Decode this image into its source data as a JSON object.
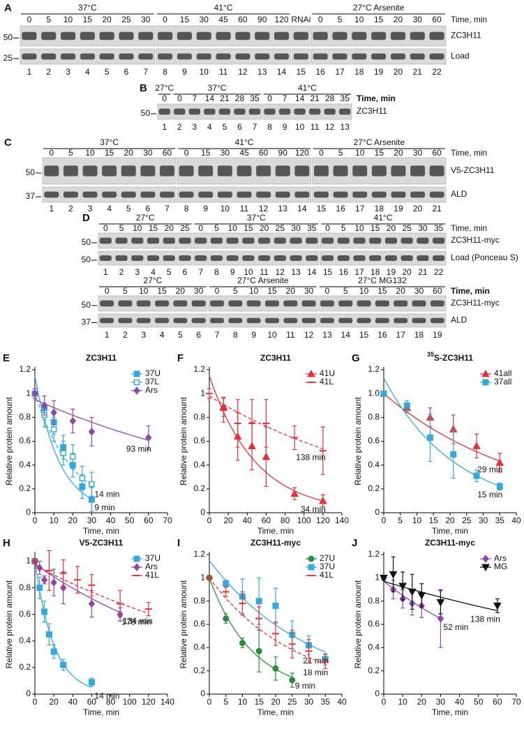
{
  "blots": [
    {
      "label": "A",
      "time_label": "Time, min",
      "groups": [
        {
          "name": "37°C",
          "times": [
            0,
            5,
            10,
            15,
            20,
            25,
            30
          ]
        },
        {
          "name": "41°C",
          "times": [
            0,
            15,
            30,
            45,
            60,
            90,
            120
          ]
        },
        {
          "times": [
            "RNAi"
          ]
        },
        {
          "name": "27°C Arsenite",
          "times": [
            0,
            5,
            10,
            15,
            20,
            30,
            60
          ]
        }
      ],
      "rows": [
        {
          "marker": "50",
          "name": "ZC3H11"
        },
        {
          "marker": "25",
          "name": "Load"
        }
      ],
      "lanes": [
        1,
        2,
        3,
        4,
        5,
        6,
        7,
        8,
        9,
        10,
        11,
        12,
        13,
        14,
        15,
        16,
        17,
        18,
        19,
        20,
        21,
        22
      ]
    },
    {
      "label": "B",
      "time_label": "Time, min",
      "groups": [
        {
          "name": "27°C",
          "times": [
            0
          ]
        },
        {
          "name": "37°C",
          "times": [
            0,
            7,
            14,
            21,
            28,
            35
          ]
        },
        {
          "name": "41°C",
          "times": [
            0,
            7,
            14,
            21,
            28,
            35
          ]
        }
      ],
      "rows": [
        {
          "marker": "50",
          "name": "ZC3H11"
        }
      ],
      "lanes": [
        1,
        2,
        3,
        4,
        5,
        6,
        7,
        8,
        9,
        10,
        11,
        12,
        13
      ]
    },
    {
      "label": "C",
      "time_label": "Time, min",
      "groups": [
        {
          "name": "37°C",
          "times": [
            0,
            5,
            10,
            15,
            20,
            30,
            60
          ]
        },
        {
          "name": "41°C",
          "times": [
            0,
            15,
            30,
            45,
            60,
            90,
            120
          ]
        },
        {
          "name": "27°C Arsenite",
          "times": [
            0,
            5,
            10,
            15,
            20,
            30,
            60
          ]
        }
      ],
      "rows": [
        {
          "marker": "50",
          "name": "V5-ZC3H11"
        },
        {
          "marker": "37",
          "name": "ALD"
        }
      ],
      "lanes": [
        1,
        2,
        3,
        4,
        5,
        6,
        7,
        8,
        9,
        10,
        11,
        12,
        13,
        14,
        15,
        16,
        17,
        18,
        19,
        20,
        21
      ]
    },
    {
      "label": "D",
      "time_label": "Time, min",
      "groups": [
        {
          "name": "27°C",
          "times": [
            0,
            5,
            10,
            15,
            20,
            25
          ]
        },
        {
          "name": "37°C",
          "times": [
            0,
            5,
            10,
            15,
            20,
            25,
            30,
            35
          ]
        },
        {
          "name": "41°C",
          "times": [
            0,
            5,
            10,
            15,
            20,
            25,
            30,
            35
          ]
        }
      ],
      "rows": [
        {
          "marker": "50",
          "name": "ZC3H11-myc"
        },
        {
          "marker": "50",
          "name": "Load (Ponceau S)"
        }
      ],
      "lanes": [
        1,
        2,
        3,
        4,
        5,
        6,
        7,
        8,
        9,
        10,
        11,
        12,
        13,
        14,
        15,
        16,
        17,
        18,
        19,
        20,
        21,
        22
      ]
    },
    {
      "time_label": "Time, min",
      "groups": [
        {
          "name": "27°C",
          "times": [
            0,
            5,
            10,
            15,
            20,
            30
          ]
        },
        {
          "name": "27°C Arsenite",
          "times": [
            0,
            5,
            10,
            15,
            20,
            30
          ]
        },
        {
          "name": "27°C MG132",
          "times": [
            0,
            5,
            10,
            15,
            20,
            30,
            60
          ]
        }
      ],
      "rows": [
        {
          "marker": "50",
          "name": "ZC3H11-myc"
        },
        {
          "marker": "37",
          "name": "ALD"
        }
      ],
      "lanes": [
        1,
        2,
        3,
        4,
        5,
        6,
        7,
        8,
        9,
        10,
        11,
        12,
        13,
        14,
        15,
        16,
        17,
        18,
        19
      ]
    }
  ],
  "chart_data": [
    {
      "type": "scatter",
      "panel": "E",
      "title": "ZC3H11",
      "x_label": "Time, min",
      "y_label": "Relative protein amount",
      "xlim": [
        0,
        70
      ],
      "xticks": [
        0,
        10,
        20,
        30,
        40,
        50,
        60,
        70
      ],
      "ylim": [
        0,
        1.2
      ],
      "yticks": [
        0,
        0.2,
        0.4,
        0.6,
        0.8,
        1,
        1.2
      ],
      "legend": "upper right",
      "series": [
        {
          "name": "37U",
          "color": "#36a9d9",
          "marker": "square",
          "dash": false,
          "x": [
            0,
            5,
            10,
            15,
            20,
            25,
            30
          ],
          "values": [
            1.0,
            0.88,
            0.76,
            0.55,
            0.4,
            0.22,
            0.11
          ],
          "errors": [
            0.04,
            0.1,
            0.1,
            0.1,
            0.1,
            0.1,
            0.1
          ],
          "fit": {
            "y0": 1.15,
            "half_life": 9,
            "label": "9 min"
          }
        },
        {
          "name": "37L",
          "color": "#36a9d9",
          "marker": "square-open",
          "dash": true,
          "x": [
            0,
            5,
            10,
            15,
            20,
            25,
            30
          ],
          "values": [
            1.0,
            0.82,
            0.7,
            0.5,
            0.47,
            0.29,
            0.24
          ],
          "errors": [
            0.04,
            0.1,
            0.1,
            0.1,
            0.1,
            0.1,
            0.1
          ],
          "fit": {
            "y0": 1.0,
            "half_life": 14,
            "label": "14 min"
          }
        },
        {
          "name": "Ars",
          "color": "#8e47a8",
          "marker": "diamond",
          "dash": false,
          "x": [
            0,
            5,
            10,
            20,
            30,
            60
          ],
          "values": [
            1.0,
            0.9,
            0.84,
            0.77,
            0.68,
            0.63
          ],
          "errors": [
            0.04,
            0.08,
            0.1,
            0.1,
            0.12,
            0.1
          ],
          "fit": {
            "y0": 0.95,
            "half_life": 93,
            "label": "93 min"
          }
        }
      ]
    },
    {
      "type": "scatter",
      "panel": "F",
      "title": "ZC3H11",
      "x_label": "Time, min",
      "y_label": "Relative protein amount",
      "xlim": [
        0,
        140
      ],
      "xticks": [
        0,
        20,
        40,
        60,
        80,
        100,
        120,
        140
      ],
      "ylim": [
        0,
        1.2
      ],
      "yticks": [
        0,
        0.2,
        0.4,
        0.6,
        0.8,
        1,
        1.2
      ],
      "legend": "upper right",
      "series": [
        {
          "name": "41U",
          "color": "#e0323c",
          "marker": "triangle",
          "dash": false,
          "x": [
            15,
            30,
            45,
            60,
            90,
            120
          ],
          "values": [
            0.89,
            0.64,
            0.56,
            0.47,
            0.16,
            0.1
          ],
          "errors": [
            0.08,
            0.2,
            0.2,
            0.25,
            0.05,
            0.05
          ],
          "fit": {
            "y0": 1.15,
            "half_life": 34,
            "label": "34 min"
          }
        },
        {
          "name": "41L",
          "color": "#e0323c",
          "marker": "dash",
          "dash": true,
          "x": [
            0,
            15,
            30,
            45,
            60,
            90,
            120
          ],
          "values": [
            1.0,
            0.86,
            0.75,
            0.75,
            0.75,
            0.63,
            0.52
          ],
          "errors": [
            0.04,
            0.1,
            0.2,
            0.2,
            0.2,
            0.1,
            0.2
          ],
          "fit": {
            "y0": 0.98,
            "half_life": 138,
            "label": "138 min"
          }
        }
      ]
    },
    {
      "type": "scatter",
      "panel": "G",
      "title_superscript": "35",
      "title": "S-ZC3H11",
      "x_label": "Time, min",
      "y_label": "Relative protein amount",
      "xlim": [
        0,
        40
      ],
      "xticks": [
        0,
        5,
        10,
        15,
        20,
        25,
        30,
        35,
        40
      ],
      "ylim": [
        0,
        1.2
      ],
      "yticks": [
        0,
        0.2,
        0.4,
        0.6,
        0.8,
        {
          "value": 1,
          "label": "1.0"
        },
        1.2
      ],
      "legend": "upper right",
      "series": [
        {
          "name": "41all",
          "color": "#e0323c",
          "marker": "triangle",
          "dash": false,
          "x": [
            0,
            7,
            14,
            21,
            28,
            35
          ],
          "values": [
            1.0,
            0.88,
            0.8,
            0.7,
            0.56,
            0.42
          ],
          "errors": [
            0.02,
            0.04,
            0.08,
            0.12,
            0.1,
            0.08
          ],
          "fit": {
            "y0": 1.0,
            "half_life": 29,
            "label": "29 min"
          }
        },
        {
          "name": "37all",
          "color": "#36a9d9",
          "marker": "square",
          "dash": false,
          "x": [
            0,
            7,
            14,
            21,
            28,
            35
          ],
          "values": [
            1.0,
            0.9,
            0.63,
            0.49,
            0.31,
            0.22
          ],
          "errors": [
            0.02,
            0.04,
            0.2,
            0.2,
            0.05,
            0.03
          ],
          "fit": {
            "y0": 1.13,
            "half_life": 15,
            "label": "15 min"
          }
        }
      ]
    },
    {
      "type": "scatter",
      "panel": "H",
      "title": "V5-ZC3H11",
      "x_label": "Time, min",
      "y_label": "Relative protein amount",
      "xlim": [
        0,
        140
      ],
      "xticks": [
        0,
        20,
        40,
        60,
        80,
        100,
        120,
        140
      ],
      "ylim": [
        0,
        1.05
      ],
      "yticks": [
        0,
        0.2,
        0.4,
        0.6,
        0.8,
        1
      ],
      "legend": "upper right",
      "series": [
        {
          "name": "37U",
          "color": "#36a9d9",
          "marker": "square",
          "dash": false,
          "x": [
            0,
            5,
            10,
            15,
            20,
            30,
            60
          ],
          "values": [
            1.0,
            0.8,
            0.62,
            0.45,
            0.32,
            0.22,
            0.09
          ],
          "errors": [
            0.02,
            0.08,
            0.08,
            0.08,
            0.05,
            0.04,
            0.03
          ],
          "fit": {
            "y0": 1.0,
            "half_life": 14,
            "label": "14 min"
          }
        },
        {
          "name": "Ars",
          "color": "#8e47a8",
          "marker": "diamond",
          "dash": false,
          "x": [
            0,
            5,
            10,
            20,
            30,
            60,
            90
          ],
          "values": [
            1.0,
            0.95,
            0.86,
            0.84,
            0.8,
            0.68,
            0.6
          ],
          "errors": [
            0.02,
            0.05,
            0.03,
            0.1,
            0.12,
            0.1,
            0.05
          ],
          "fit": {
            "y0": 0.98,
            "half_life": 134,
            "label": "134 min"
          }
        },
        {
          "name": "41L",
          "color": "#e0323c",
          "marker": "dash",
          "dash": true,
          "x": [
            0,
            15,
            30,
            45,
            60,
            90,
            120
          ],
          "values": [
            1.0,
            0.93,
            0.91,
            0.86,
            0.82,
            0.68,
            0.64
          ],
          "errors": [
            0.02,
            0.15,
            0.1,
            0.1,
            0.08,
            0.1,
            0.05
          ],
          "fit": {
            "y0": 0.97,
            "half_life": 178,
            "label": "178 min"
          }
        }
      ]
    },
    {
      "type": "scatter",
      "panel": "I",
      "title": "ZC3H11-myc",
      "x_label": "Time, min",
      "y_label": "Relative protein amount",
      "xlim": [
        0,
        40
      ],
      "xticks": [
        0,
        5,
        10,
        15,
        20,
        25,
        30,
        35,
        40
      ],
      "ylim": [
        0,
        1.2
      ],
      "yticks": [
        0,
        0.2,
        0.4,
        0.6,
        0.8,
        1,
        1.2
      ],
      "legend": "upper right",
      "series": [
        {
          "name": "27U",
          "color": "#2b8c3e",
          "marker": "circle",
          "dash": false,
          "x": [
            0,
            5,
            10,
            15,
            20,
            25
          ],
          "values": [
            1.0,
            0.65,
            0.44,
            0.37,
            0.22,
            0.12
          ],
          "errors": [
            0.02,
            0.04,
            0.04,
            0.18,
            0.1,
            0.06
          ],
          "fit": {
            "y0": 1.0,
            "half_life": 9,
            "label": "9 min"
          }
        },
        {
          "name": "37U",
          "color": "#36a9d9",
          "marker": "square",
          "dash": false,
          "x": [
            5,
            10,
            15,
            20,
            25,
            30,
            35
          ],
          "values": [
            0.95,
            0.84,
            0.8,
            0.76,
            0.51,
            0.42,
            0.3
          ],
          "errors": [
            0.03,
            0.15,
            0.2,
            0.15,
            0.12,
            0.08,
            0.05
          ],
          "fit": {
            "y0": 1.15,
            "half_life": 21,
            "label": "21 min"
          }
        },
        {
          "name": "41L",
          "color": "#e0323c",
          "marker": "dash",
          "dash": true,
          "x": [
            0,
            5,
            10,
            15,
            20,
            25,
            30,
            35
          ],
          "values": [
            1.0,
            0.88,
            0.78,
            0.65,
            0.52,
            0.43,
            0.37,
            0.28
          ],
          "errors": [
            0.02,
            0.04,
            0.1,
            0.1,
            0.1,
            0.12,
            0.1,
            0.06
          ],
          "fit": {
            "y0": 1.0,
            "half_life": 18,
            "label": "18 min"
          }
        }
      ]
    },
    {
      "type": "scatter",
      "panel": "J",
      "title": "ZC3H11-myc",
      "x_label": "Time, min",
      "y_label": "Relative protein amount",
      "xlim": [
        0,
        70
      ],
      "xticks": [
        0,
        10,
        20,
        30,
        40,
        50,
        60,
        70
      ],
      "ylim": [
        0,
        1.2
      ],
      "yticks": [
        0,
        0.2,
        0.4,
        0.6,
        0.8,
        1,
        1.2
      ],
      "legend": "upper right",
      "series": [
        {
          "name": "Ars",
          "color": "#8e47a8",
          "marker": "diamond",
          "dash": false,
          "x": [
            0,
            5,
            10,
            15,
            20,
            30
          ],
          "values": [
            1.0,
            0.9,
            0.82,
            0.78,
            0.76,
            0.65
          ],
          "errors": [
            0.02,
            0.08,
            0.08,
            0.1,
            0.1,
            0.25
          ],
          "fit": {
            "y0": 0.97,
            "half_life": 52,
            "label": "52 min"
          }
        },
        {
          "name": "MG",
          "color": "#111111",
          "marker": "triangle-down",
          "dash": false,
          "x": [
            0,
            5,
            10,
            15,
            20,
            30,
            60
          ],
          "values": [
            1.0,
            1.03,
            0.93,
            0.88,
            0.85,
            0.79,
            0.76
          ],
          "errors": [
            0.02,
            0.15,
            0.12,
            0.15,
            0.1,
            0.1,
            0.06
          ],
          "fit": {
            "y0": 0.97,
            "half_life": 138,
            "label": "138 min"
          }
        }
      ]
    }
  ]
}
